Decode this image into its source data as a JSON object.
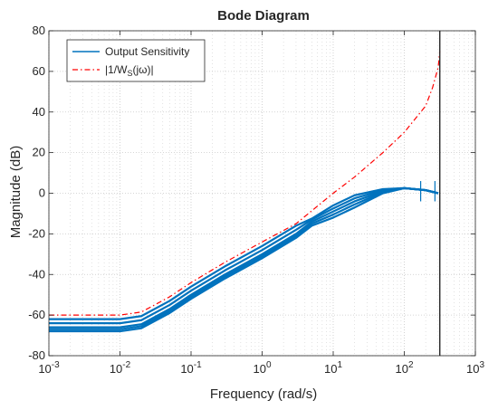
{
  "chart_data": {
    "type": "line",
    "title": "Bode Diagram",
    "xlabel": "Frequency  (rad/s)",
    "ylabel": "Magnitude (dB)",
    "xscale": "log",
    "xlim": [
      0.001,
      1000
    ],
    "ylim": [
      -80,
      80
    ],
    "x_ticks": [
      0.001,
      0.01,
      0.1,
      1,
      10,
      100,
      1000
    ],
    "x_tick_labels": [
      {
        "base": "10",
        "exp": "-3"
      },
      {
        "base": "10",
        "exp": "-2"
      },
      {
        "base": "10",
        "exp": "-1"
      },
      {
        "base": "10",
        "exp": "0"
      },
      {
        "base": "10",
        "exp": "1"
      },
      {
        "base": "10",
        "exp": "2"
      },
      {
        "base": "10",
        "exp": "3"
      }
    ],
    "y_ticks": [
      -80,
      -60,
      -40,
      -20,
      0,
      20,
      40,
      60,
      80
    ],
    "y_tick_labels": [
      "-80",
      "-60",
      "-40",
      "-20",
      "0",
      "20",
      "40",
      "60",
      "80"
    ],
    "grid": true,
    "legend": {
      "placement": "top-left",
      "entries": [
        {
          "label": "Output Sensitivity",
          "color": "#0072BD",
          "style": "solid"
        },
        {
          "label_parts": {
            "pre": "|1/W",
            "sub": "S",
            "post": "(jω)|"
          },
          "color": "#FF0000",
          "style": "dash-dot"
        }
      ]
    },
    "vertical_line": {
      "x": 316,
      "color": "#262626"
    },
    "series": [
      {
        "label_ref": 0,
        "color": "#0072BD",
        "x": [
          0.001,
          0.01,
          0.02,
          0.05,
          0.1,
          0.3,
          1,
          3,
          5,
          10,
          20,
          50,
          100,
          200,
          300
        ],
        "y": [
          -62,
          -62,
          -60.5,
          -53,
          -46,
          -36,
          -26,
          -16,
          -12.5,
          -6,
          -1,
          2,
          2.5,
          1.5,
          0
        ]
      },
      {
        "label_ref": 0,
        "color": "#0072BD",
        "x": [
          0.001,
          0.01,
          0.02,
          0.05,
          0.1,
          0.3,
          1,
          3,
          5,
          10,
          20,
          50,
          100,
          200,
          300
        ],
        "y": [
          -64,
          -64,
          -62.5,
          -55,
          -48,
          -38,
          -28,
          -18,
          -13,
          -7.5,
          -2.5,
          1.5,
          2.5,
          1.5,
          0
        ]
      },
      {
        "label_ref": 0,
        "color": "#0072BD",
        "x": [
          0.001,
          0.01,
          0.02,
          0.05,
          0.1,
          0.3,
          1,
          3,
          5,
          10,
          20,
          50,
          100,
          200,
          300
        ],
        "y": [
          -66,
          -66,
          -64.5,
          -57,
          -50,
          -40,
          -30,
          -20,
          -14,
          -9,
          -4,
          1,
          2.5,
          1.5,
          0
        ]
      },
      {
        "label_ref": 0,
        "color": "#0072BD",
        "x": [
          0.001,
          0.01,
          0.02,
          0.05,
          0.1,
          0.3,
          1,
          3,
          5,
          10,
          20,
          50,
          100,
          200,
          300
        ],
        "y": [
          -67,
          -67,
          -65.5,
          -58,
          -51,
          -41,
          -31,
          -21,
          -15,
          -10.5,
          -5.5,
          0.5,
          2.5,
          1.5,
          0
        ]
      },
      {
        "label_ref": 0,
        "color": "#0072BD",
        "x": [
          0.001,
          0.01,
          0.02,
          0.05,
          0.1,
          0.3,
          1,
          3,
          5,
          10,
          20,
          50,
          100,
          200,
          300
        ],
        "y": [
          -68,
          -68,
          -66.5,
          -59,
          -52,
          -42,
          -32,
          -22,
          -16,
          -12,
          -7,
          0,
          2.5,
          1.5,
          0
        ]
      },
      {
        "label_ref": 1,
        "color": "#FF0000",
        "dash": true,
        "x": [
          0.001,
          0.01,
          0.02,
          0.05,
          0.1,
          0.3,
          1,
          3,
          10,
          20,
          50,
          100,
          200,
          250,
          300,
          316
        ],
        "y": [
          -60,
          -60,
          -58.5,
          -51,
          -44,
          -34,
          -24,
          -15,
          0,
          8,
          20,
          30,
          43,
          52,
          62,
          70
        ]
      }
    ]
  }
}
